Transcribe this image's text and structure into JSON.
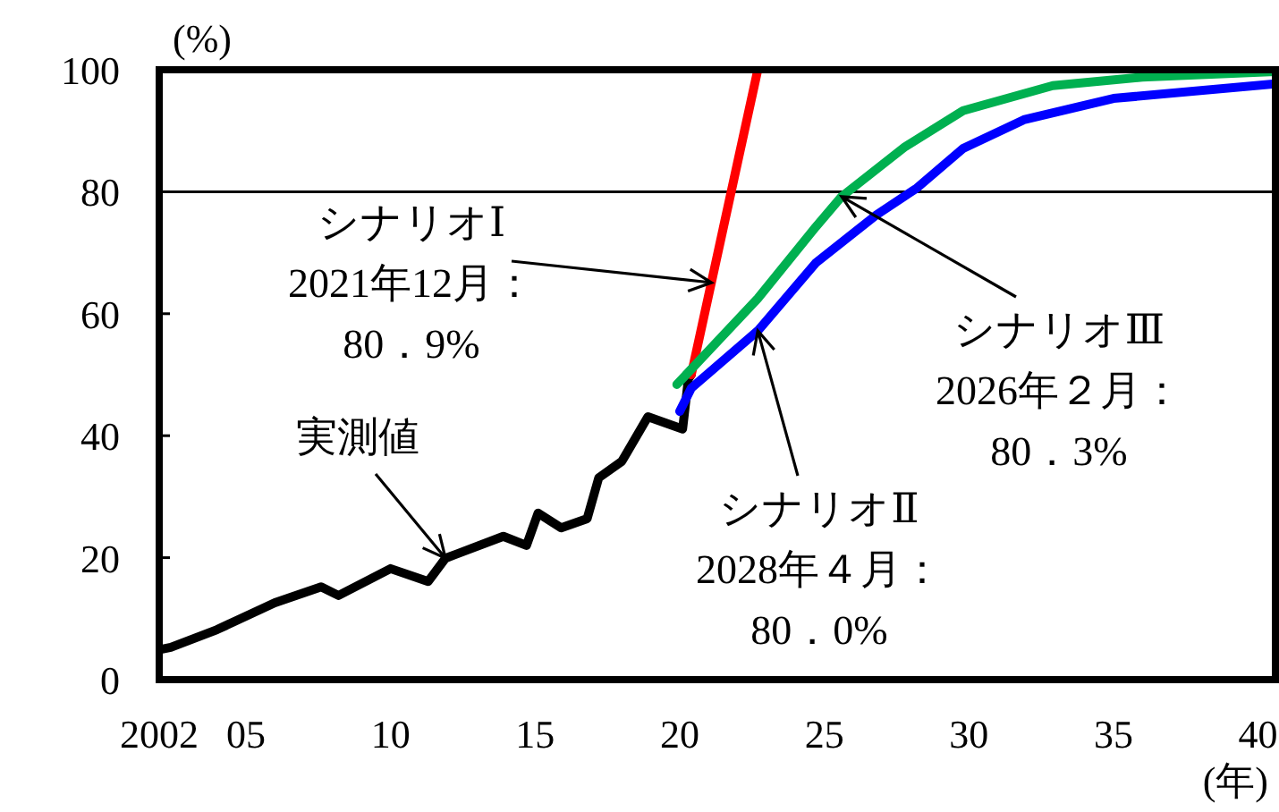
{
  "chart_data": {
    "type": "line",
    "ylabel": "(%)",
    "xlabel": "(年)",
    "xlim": [
      2002,
      2040.6
    ],
    "ylim": [
      0,
      100
    ],
    "xticks": [
      {
        "value": 2002,
        "label": "2002"
      },
      {
        "value": 2005,
        "label": "05"
      },
      {
        "value": 2010,
        "label": "10"
      },
      {
        "value": 2015,
        "label": "15"
      },
      {
        "value": 2020,
        "label": "20"
      },
      {
        "value": 2025,
        "label": "25"
      },
      {
        "value": 2030,
        "label": "30"
      },
      {
        "value": 2035,
        "label": "35"
      },
      {
        "value": 2040,
        "label": "40"
      }
    ],
    "yticks": [
      0,
      20,
      40,
      60,
      80,
      100
    ],
    "ref_lines": [
      {
        "axis": "y",
        "value": 80,
        "color": "#000000"
      }
    ],
    "series": [
      {
        "color": "#000000",
        "x": [
          2002.1,
          2002.4,
          2004.0,
          2006.0,
          2007.6,
          2008.2,
          2010.0,
          2011.3,
          2011.9,
          2013.9,
          2014.7,
          2015.1,
          2015.9,
          2016.8,
          2017.2,
          2018.0,
          2018.9,
          2020.1,
          2020.3,
          2020.4
        ],
        "values": [
          5,
          5.3,
          8.2,
          12.6,
          15.2,
          13.8,
          18.2,
          16.1,
          19.9,
          23.5,
          22.0,
          27.3,
          24.9,
          26.4,
          33.1,
          35.8,
          43.1,
          41.1,
          49.3,
          50
        ]
      },
      {
        "color": "#ff0000",
        "x": [
          2020.4,
          2022.7
        ],
        "values": [
          50,
          100
        ]
      },
      {
        "color": "#00b050",
        "x": [
          2019.9,
          2020.6,
          2022.7,
          2024.7,
          2025.6,
          2027.8,
          2029.8,
          2032.9,
          2036.0,
          2040.6
        ],
        "values": [
          48.4,
          51.9,
          62.5,
          74.2,
          79.2,
          87.4,
          93.3,
          97.4,
          98.8,
          99.7
        ]
      },
      {
        "color": "#0000ff",
        "x": [
          2020.0,
          2020.4,
          2022.7,
          2024.7,
          2026.8,
          2028.2,
          2029.8,
          2031.9,
          2035.0,
          2040.6
        ],
        "values": [
          44,
          47.8,
          57.2,
          68.3,
          76.2,
          80.6,
          87.1,
          91.8,
          95.3,
          97.7
        ]
      }
    ],
    "annotations": [
      {
        "text": "シナリオⅠ\n2021年12月：\n80．9%",
        "x": 2021.1,
        "y": 65.1
      },
      {
        "text": "実測値",
        "x": 2011.9,
        "y": 19.9
      },
      {
        "text": "シナリオⅢ\n2026年２月：\n80．3%",
        "x": 2025.6,
        "y": 79.2
      },
      {
        "text": "シナリオⅡ\n2028年４月：\n80．0%",
        "x": 2022.7,
        "y": 57.2
      }
    ]
  }
}
